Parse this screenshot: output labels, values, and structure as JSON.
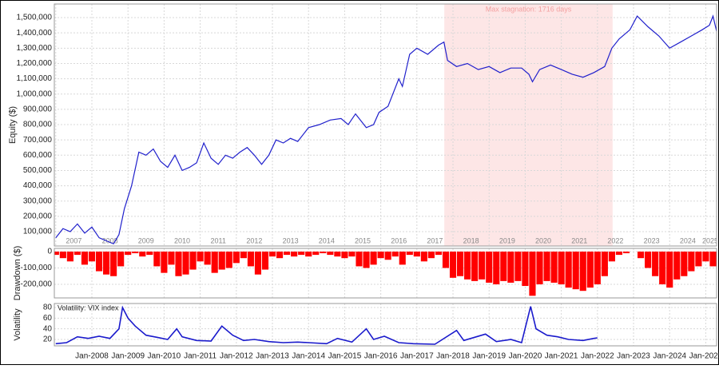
{
  "chart_data": [
    {
      "type": "line",
      "ylabel": "Equity ($)",
      "xlim": [
        2006.96,
        2025.3
      ],
      "ylim": [
        6000,
        1589000
      ],
      "yticks": [
        {
          "value": 100000,
          "label": "100,000"
        },
        {
          "value": 200000,
          "label": "200,000"
        },
        {
          "value": 300000,
          "label": "300,000"
        },
        {
          "value": 400000,
          "label": "400,000"
        },
        {
          "value": 500000,
          "label": "500,000"
        },
        {
          "value": 600000,
          "label": "600,000"
        },
        {
          "value": 700000,
          "label": "700,000"
        },
        {
          "value": 800000,
          "label": "800,000"
        },
        {
          "value": 900000,
          "label": "900,000"
        },
        {
          "value": 1000000,
          "label": "1,000,000"
        },
        {
          "value": 1100000,
          "label": "1,100,000"
        },
        {
          "value": 1200000,
          "label": "1,200,000"
        },
        {
          "value": 1300000,
          "label": "1,300,000"
        },
        {
          "value": 1400000,
          "label": "1,400,000"
        },
        {
          "value": 1500000,
          "label": "1,500,000"
        }
      ],
      "xticks": [
        2007,
        2008,
        2009,
        2010,
        2011,
        2012,
        2013,
        2014,
        2015,
        2016,
        2017,
        2018,
        2019,
        2020,
        2021,
        2022,
        2023,
        2024,
        2025
      ],
      "grid": true,
      "stagnation": {
        "xlim": [
          2017.76,
          2022.42
        ],
        "label": "Max stagnation: 1716 days",
        "color": "#fde6e6"
      },
      "x": [
        2007.0,
        2007.2,
        2007.4,
        2007.6,
        2007.8,
        2008.0,
        2008.2,
        2008.4,
        2008.6,
        2008.75,
        2008.9,
        2009.1,
        2009.3,
        2009.5,
        2009.7,
        2009.9,
        2010.1,
        2010.3,
        2010.5,
        2010.7,
        2010.9,
        2011.1,
        2011.3,
        2011.5,
        2011.7,
        2011.9,
        2012.1,
        2012.3,
        2012.5,
        2012.7,
        2012.9,
        2013.1,
        2013.3,
        2013.5,
        2013.7,
        2014.0,
        2014.3,
        2014.6,
        2014.9,
        2015.1,
        2015.3,
        2015.6,
        2015.8,
        2015.95,
        2016.2,
        2016.5,
        2016.6,
        2016.8,
        2017.0,
        2017.3,
        2017.6,
        2017.75,
        2017.85,
        2018.1,
        2018.4,
        2018.7,
        2019.0,
        2019.3,
        2019.6,
        2019.9,
        2020.1,
        2020.2,
        2020.4,
        2020.7,
        2021.0,
        2021.3,
        2021.6,
        2021.9,
        2022.2,
        2022.4,
        2022.6,
        2022.9,
        2023.1,
        2023.4,
        2023.7,
        2024.0,
        2024.3,
        2024.6,
        2024.9,
        2025.1,
        2025.2,
        2025.3
      ],
      "series": [
        {
          "color": "#2020cc",
          "values": [
            60000,
            120000,
            100000,
            150000,
            90000,
            130000,
            60000,
            40000,
            20000,
            80000,
            250000,
            400000,
            620000,
            600000,
            640000,
            560000,
            520000,
            600000,
            500000,
            520000,
            550000,
            680000,
            580000,
            540000,
            600000,
            580000,
            620000,
            650000,
            600000,
            540000,
            600000,
            700000,
            680000,
            710000,
            690000,
            780000,
            800000,
            830000,
            840000,
            800000,
            870000,
            780000,
            800000,
            880000,
            920000,
            1100000,
            1050000,
            1260000,
            1300000,
            1260000,
            1320000,
            1340000,
            1220000,
            1180000,
            1200000,
            1160000,
            1180000,
            1140000,
            1170000,
            1170000,
            1130000,
            1080000,
            1160000,
            1190000,
            1160000,
            1130000,
            1110000,
            1140000,
            1180000,
            1300000,
            1360000,
            1420000,
            1510000,
            1440000,
            1380000,
            1300000,
            1340000,
            1380000,
            1420000,
            1450000,
            1510000,
            1410000
          ]
        }
      ]
    },
    {
      "type": "bar",
      "ylabel": "Drawdown ($)",
      "xlim": [
        2006.96,
        2025.3
      ],
      "ylim": [
        -283000,
        19500
      ],
      "yticks": [
        {
          "value": -200000,
          "label": "-200,000"
        },
        {
          "value": -100000,
          "label": "-100,000"
        },
        0
      ],
      "grid": true,
      "x": [
        2007.0,
        2007.2,
        2007.4,
        2007.6,
        2007.8,
        2008.0,
        2008.2,
        2008.4,
        2008.6,
        2008.8,
        2009.0,
        2009.2,
        2009.4,
        2009.6,
        2009.8,
        2010.0,
        2010.2,
        2010.4,
        2010.6,
        2010.8,
        2011.0,
        2011.2,
        2011.4,
        2011.6,
        2011.8,
        2012.0,
        2012.2,
        2012.4,
        2012.6,
        2012.8,
        2013.0,
        2013.2,
        2013.4,
        2013.6,
        2013.8,
        2014.0,
        2014.2,
        2014.4,
        2014.6,
        2014.8,
        2015.0,
        2015.2,
        2015.4,
        2015.6,
        2015.8,
        2016.0,
        2016.2,
        2016.4,
        2016.6,
        2016.8,
        2017.0,
        2017.2,
        2017.4,
        2017.6,
        2017.8,
        2018.0,
        2018.2,
        2018.4,
        2018.6,
        2018.8,
        2019.0,
        2019.2,
        2019.4,
        2019.6,
        2019.8,
        2020.0,
        2020.2,
        2020.4,
        2020.6,
        2020.8,
        2021.0,
        2021.2,
        2021.4,
        2021.6,
        2021.8,
        2022.0,
        2022.2,
        2022.4,
        2022.6,
        2022.8,
        2023.0,
        2023.2,
        2023.4,
        2023.6,
        2023.8,
        2024.0,
        2024.2,
        2024.4,
        2024.6,
        2024.8,
        2025.0,
        2025.2
      ],
      "series": [
        {
          "color": "#ff0000",
          "values": [
            -20000,
            -40000,
            -60000,
            -20000,
            -80000,
            -60000,
            -120000,
            -140000,
            -150000,
            -90000,
            -20000,
            -10000,
            -30000,
            -20000,
            -90000,
            -130000,
            -80000,
            -150000,
            -140000,
            -110000,
            -60000,
            -80000,
            -130000,
            -110000,
            -100000,
            -70000,
            -40000,
            -90000,
            -140000,
            -110000,
            -30000,
            -40000,
            -20000,
            -30000,
            -20000,
            -30000,
            -20000,
            -10000,
            -20000,
            -30000,
            -40000,
            -30000,
            -90000,
            -100000,
            -80000,
            -40000,
            -50000,
            -30000,
            -80000,
            -20000,
            -30000,
            -60000,
            -40000,
            -20000,
            -100000,
            -160000,
            -150000,
            -170000,
            -180000,
            -170000,
            -190000,
            -200000,
            -180000,
            -190000,
            -180000,
            -210000,
            -270000,
            -200000,
            -180000,
            -190000,
            -200000,
            -220000,
            -230000,
            -240000,
            -220000,
            -200000,
            -150000,
            -60000,
            -20000,
            -10000,
            0,
            -40000,
            -100000,
            -150000,
            -200000,
            -220000,
            -170000,
            -150000,
            -120000,
            -90000,
            -60000,
            -90000
          ]
        }
      ]
    },
    {
      "type": "line",
      "ylabel": "Volatility",
      "xlim": [
        2006.96,
        2025.3
      ],
      "ylim": [
        8,
        87.5
      ],
      "yticks": [
        20,
        40,
        60,
        80
      ],
      "grid": true,
      "xticks": [
        {
          "value": 2008,
          "label": "Jan-2008"
        },
        {
          "value": 2009,
          "label": "Jan-2009"
        },
        {
          "value": 2010,
          "label": "Jan-2010"
        },
        {
          "value": 2011,
          "label": "Jan-2011"
        },
        {
          "value": 2012,
          "label": "Jan-2012"
        },
        {
          "value": 2013,
          "label": "Jan-2013"
        },
        {
          "value": 2014,
          "label": "Jan-2014"
        },
        {
          "value": 2015,
          "label": "Jan-2015"
        },
        {
          "value": 2016,
          "label": "Jan-2016"
        },
        {
          "value": 2017,
          "label": "Jan-2017"
        },
        {
          "value": 2018,
          "label": "Jan-2018"
        },
        {
          "value": 2019,
          "label": "Jan-2019"
        },
        {
          "value": 2020,
          "label": "Jan-2020"
        },
        {
          "value": 2021,
          "label": "Jan-2021"
        },
        {
          "value": 2022,
          "label": "Jan-2022"
        },
        {
          "value": 2023,
          "label": "Jan-2023"
        },
        {
          "value": 2024,
          "label": "Jan-2024"
        },
        {
          "value": 2025,
          "label": "Jan-2025"
        }
      ],
      "x": [
        2007.0,
        2007.3,
        2007.6,
        2007.9,
        2008.2,
        2008.5,
        2008.75,
        2008.85,
        2009.0,
        2009.2,
        2009.5,
        2009.8,
        2010.1,
        2010.35,
        2010.5,
        2010.9,
        2011.3,
        2011.6,
        2011.9,
        2012.2,
        2012.5,
        2012.9,
        2013.3,
        2013.7,
        2014.0,
        2014.5,
        2014.8,
        2015.2,
        2015.6,
        2015.8,
        2016.1,
        2016.5,
        2016.9,
        2017.5,
        2018.1,
        2018.3,
        2018.9,
        2019.2,
        2019.6,
        2019.9,
        2020.15,
        2020.3,
        2020.6,
        2020.9,
        2021.2,
        2021.6,
        2021.9,
        2022.0
      ],
      "series": [
        {
          "name": "Volatility: VIX index",
          "color": "#1a1acc",
          "values": [
            12,
            14,
            25,
            22,
            26,
            22,
            40,
            80,
            60,
            45,
            28,
            24,
            20,
            40,
            25,
            18,
            17,
            45,
            28,
            18,
            20,
            16,
            14,
            15,
            14,
            12,
            22,
            15,
            40,
            20,
            26,
            14,
            12,
            11,
            37,
            18,
            30,
            16,
            20,
            14,
            82,
            40,
            28,
            25,
            20,
            18,
            22,
            23
          ]
        }
      ]
    }
  ]
}
